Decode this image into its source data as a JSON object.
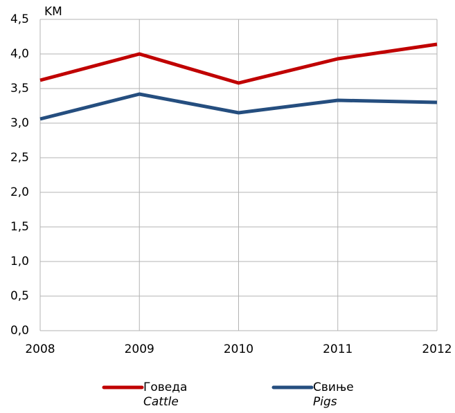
{
  "chart_data": {
    "type": "line",
    "y_unit": "KM",
    "categories": [
      "2008",
      "2009",
      "2010",
      "2011",
      "2012"
    ],
    "series": [
      {
        "name": "Говеда",
        "name_en": "Cattle",
        "color": "#c00000",
        "values": [
          3.62,
          4.0,
          3.58,
          3.93,
          4.14
        ]
      },
      {
        "name": "Свиње",
        "name_en": "Pigs",
        "color": "#254e7f",
        "values": [
          3.06,
          3.42,
          3.15,
          3.33,
          3.3
        ]
      }
    ],
    "ylim": [
      0,
      4.5
    ],
    "yticks": [
      {
        "value": 0,
        "label": "0,0"
      },
      {
        "value": 0.5,
        "label": "0,5"
      },
      {
        "value": 1,
        "label": "1,0"
      },
      {
        "value": 1.5,
        "label": "1,5"
      },
      {
        "value": 2,
        "label": "2,0"
      },
      {
        "value": 2.5,
        "label": "2,5"
      },
      {
        "value": 3,
        "label": "3,0"
      },
      {
        "value": 3.5,
        "label": "3,5"
      },
      {
        "value": 4,
        "label": "4,0"
      },
      {
        "value": 4.5,
        "label": "4,5"
      }
    ],
    "grid": true,
    "legend": "bottom"
  }
}
